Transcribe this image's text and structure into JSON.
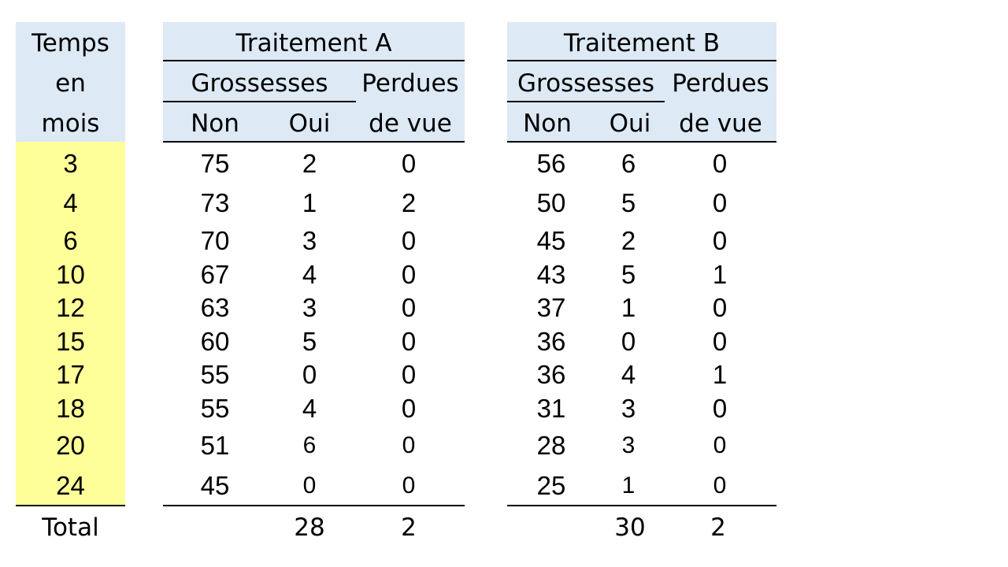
{
  "time_column": {
    "header_lines": [
      "Temps",
      "en",
      "mois"
    ],
    "values": [
      "3",
      "4",
      "6",
      "10",
      "12",
      "15",
      "17",
      "18",
      "20",
      "24"
    ],
    "total_label": "Total"
  },
  "groups": [
    {
      "title": "Traitement A",
      "subheader_pregnancies": "Grossesses",
      "subheader_lost": [
        "Perdues",
        "de vue"
      ],
      "col_non": "Non",
      "col_oui": "Oui",
      "non": [
        "75",
        "73",
        "70",
        "67",
        "63",
        "60",
        "55",
        "55",
        "51",
        "45"
      ],
      "oui": [
        "2",
        "1",
        "3",
        "4",
        "3",
        "5",
        "0",
        "4",
        "6",
        "0"
      ],
      "lost": [
        "0",
        "2",
        "0",
        "0",
        "0",
        "0",
        "0",
        "0",
        "0",
        "0"
      ],
      "total_oui": "28",
      "total_lost": "2"
    },
    {
      "title": "Traitement B",
      "subheader_pregnancies": "Grossesses",
      "subheader_lost": [
        "Perdues",
        "de vue"
      ],
      "col_non": "Non",
      "col_oui": "Oui",
      "non": [
        "56",
        "50",
        "45",
        "43",
        "37",
        "36",
        "36",
        "31",
        "28",
        "25"
      ],
      "oui": [
        "6",
        "5",
        "2",
        "5",
        "1",
        "0",
        "4",
        "3",
        "3",
        "1"
      ],
      "lost": [
        "0",
        "0",
        "0",
        "1",
        "0",
        "0",
        "1",
        "0",
        "0",
        "0"
      ],
      "total_oui": "30",
      "total_lost": "2"
    }
  ],
  "colors": {
    "header_fill": "#dde9f5",
    "time_fill": "#ffff99",
    "rule": "#000000"
  }
}
